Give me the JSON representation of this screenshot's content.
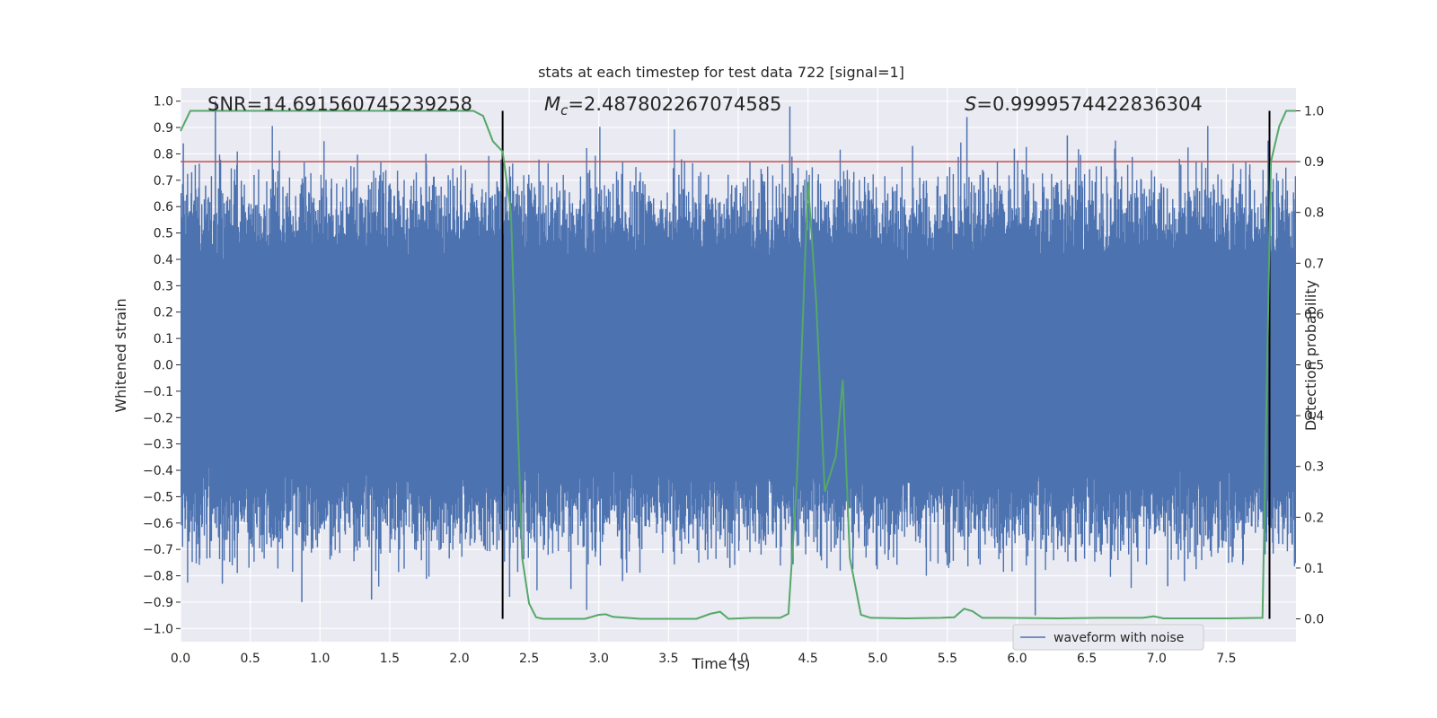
{
  "chart_data": {
    "type": "line",
    "title": "stats at each timestep for test data 722 [signal=1]",
    "xlabel": "Time (s)",
    "ylabel": "Whitened strain",
    "y2label": "Detection probability",
    "xlim": [
      0,
      8
    ],
    "ylim": [
      -1.05,
      1.05
    ],
    "y2lim": [
      -0.045,
      1.045
    ],
    "xticks": [
      "0.0",
      "0.5",
      "1.0",
      "1.5",
      "2.0",
      "2.5",
      "3.0",
      "3.5",
      "4.0",
      "4.5",
      "5.0",
      "5.5",
      "6.0",
      "6.5",
      "7.0",
      "7.5"
    ],
    "yticks": [
      "1.0",
      "0.9",
      "0.8",
      "0.7",
      "0.6",
      "0.5",
      "0.4",
      "0.3",
      "0.2",
      "0.1",
      "0.0",
      "−0.1",
      "−0.2",
      "−0.3",
      "−0.4",
      "−0.5",
      "−0.6",
      "−0.7",
      "−0.8",
      "−0.9",
      "−1.0"
    ],
    "y2ticks": [
      "1.0",
      "0.9",
      "0.8",
      "0.7",
      "0.6",
      "0.5",
      "0.4",
      "0.3",
      "0.2",
      "0.1",
      "0.0"
    ],
    "grid": true,
    "legend": {
      "placement": "lower-right",
      "entries": [
        "waveform with noise"
      ]
    },
    "annotations": {
      "snr": "SNR=14.691560745239258",
      "mc_symbol": "M",
      "mc_sub": "c",
      "mc_value": "=2.487802267074585",
      "s_symbol": "S",
      "s_value": "=0.9999574422836304"
    },
    "threshold_line": {
      "axis": "y2",
      "value": 0.9,
      "color": "#c44e52"
    },
    "vertical_lines": [
      2.31,
      7.81
    ],
    "waveform": {
      "name": "waveform with noise",
      "color": "#4c72b0",
      "x_start": 0.0,
      "x_end": 8.0,
      "spikes": [
        {
          "x": 0.02,
          "y": 0.84
        },
        {
          "x": 0.25,
          "y": 1.0
        },
        {
          "x": 0.08,
          "y": 0.73
        },
        {
          "x": 0.18,
          "y": 0.68
        },
        {
          "x": 0.3,
          "y": -0.83
        },
        {
          "x": 0.87,
          "y": -0.9
        },
        {
          "x": 1.37,
          "y": -0.89
        },
        {
          "x": 1.76,
          "y": 0.8
        },
        {
          "x": 0.06,
          "y": -0.67
        },
        {
          "x": 2.36,
          "y": -0.88
        },
        {
          "x": 2.8,
          "y": -0.85
        },
        {
          "x": 3.17,
          "y": -0.82
        },
        {
          "x": 3.94,
          "y": -0.77
        },
        {
          "x": 4.37,
          "y": 0.98
        },
        {
          "x": 5.25,
          "y": 0.83
        },
        {
          "x": 5.64,
          "y": 0.94
        },
        {
          "x": 6.13,
          "y": -0.95
        },
        {
          "x": 6.36,
          "y": 0.87
        },
        {
          "x": 6.7,
          "y": 0.82
        },
        {
          "x": 7.08,
          "y": -0.84
        },
        {
          "x": 7.2,
          "y": -0.82
        },
        {
          "x": 7.8,
          "y": 0.85
        },
        {
          "x": 0.72,
          "y": -0.66
        },
        {
          "x": 5.98,
          "y": 0.82
        }
      ]
    },
    "probability": {
      "color": "#55a868",
      "x": [
        0.0,
        0.07,
        0.2,
        0.5,
        1.0,
        1.5,
        2.0,
        2.1,
        2.17,
        2.24,
        2.31,
        2.37,
        2.45,
        2.5,
        2.55,
        2.6,
        2.7,
        2.9,
        3.0,
        3.05,
        3.1,
        3.3,
        3.5,
        3.7,
        3.8,
        3.87,
        3.93,
        4.1,
        4.3,
        4.36,
        4.42,
        4.5,
        4.56,
        4.62,
        4.7,
        4.75,
        4.8,
        4.88,
        4.95,
        5.2,
        5.45,
        5.55,
        5.62,
        5.68,
        5.75,
        5.9,
        6.3,
        6.6,
        6.9,
        6.98,
        7.05,
        7.5,
        7.76,
        7.82,
        7.88,
        7.93,
        8.0
      ],
      "y": [
        0.96,
        1.0,
        1.0,
        1.0,
        1.0,
        1.0,
        1.0,
        1.0,
        0.99,
        0.94,
        0.92,
        0.8,
        0.12,
        0.03,
        0.003,
        0.0,
        0.0,
        0.0,
        0.008,
        0.009,
        0.004,
        0.0,
        0.0,
        0.0,
        0.01,
        0.014,
        0.0,
        0.002,
        0.002,
        0.01,
        0.27,
        0.86,
        0.62,
        0.25,
        0.32,
        0.47,
        0.12,
        0.008,
        0.002,
        0.001,
        0.002,
        0.003,
        0.02,
        0.015,
        0.002,
        0.002,
        0.001,
        0.002,
        0.002,
        0.005,
        0.001,
        0.001,
        0.002,
        0.9,
        0.97,
        1.0,
        1.0
      ]
    }
  }
}
